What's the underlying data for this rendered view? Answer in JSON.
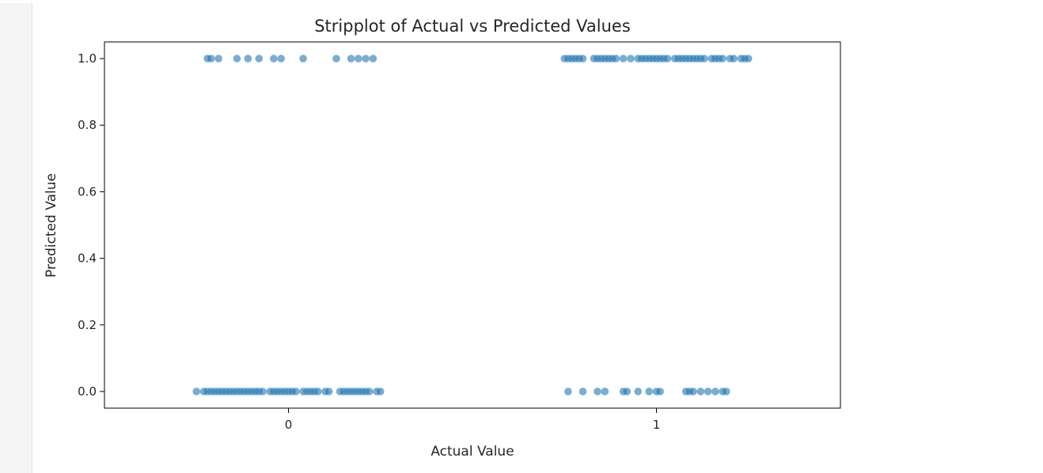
{
  "chart_data": {
    "type": "scatter",
    "subtype": "stripplot",
    "title": "Stripplot of Actual vs Predicted Values",
    "xlabel": "Actual Value",
    "ylabel": "Predicted Value",
    "x_categories": [
      "0",
      "1"
    ],
    "xlim": [
      -0.5,
      1.5
    ],
    "ylim": [
      -0.05,
      1.05
    ],
    "yticks": [
      0.0,
      0.2,
      0.4,
      0.6,
      0.8,
      1.0
    ],
    "ytick_labels": [
      "0.0",
      "0.2",
      "0.4",
      "0.6",
      "0.8",
      "1.0"
    ],
    "grid": false,
    "legend": "none",
    "marker_color": "#1f77b4",
    "marker_alpha": 0.6,
    "groups": [
      {
        "x_category": "0",
        "y": 1.0,
        "jitter": [
          -0.22,
          -0.21,
          -0.19,
          -0.14,
          -0.11,
          -0.08,
          -0.04,
          -0.02,
          0.04,
          0.13,
          0.17,
          0.19,
          0.21,
          0.23
        ]
      },
      {
        "x_category": "0",
        "y": 0.0,
        "jitter": [
          -0.25,
          -0.23,
          -0.22,
          -0.21,
          -0.2,
          -0.19,
          -0.18,
          -0.17,
          -0.16,
          -0.15,
          -0.14,
          -0.13,
          -0.12,
          -0.11,
          -0.1,
          -0.09,
          -0.08,
          -0.07,
          -0.05,
          -0.04,
          -0.03,
          -0.02,
          -0.01,
          0.0,
          0.01,
          0.02,
          0.04,
          0.05,
          0.06,
          0.07,
          0.08,
          0.1,
          0.11,
          0.14,
          0.15,
          0.16,
          0.17,
          0.18,
          0.19,
          0.2,
          0.21,
          0.22,
          0.24,
          0.25
        ]
      },
      {
        "x_category": "1",
        "y": 1.0,
        "jitter": [
          -0.25,
          -0.24,
          -0.23,
          -0.22,
          -0.21,
          -0.2,
          -0.17,
          -0.16,
          -0.15,
          -0.14,
          -0.13,
          -0.12,
          -0.11,
          -0.09,
          -0.07,
          -0.05,
          -0.04,
          -0.03,
          -0.02,
          -0.01,
          0.0,
          0.01,
          0.02,
          0.03,
          0.05,
          0.06,
          0.07,
          0.08,
          0.09,
          0.1,
          0.11,
          0.12,
          0.13,
          0.15,
          0.16,
          0.17,
          0.18,
          0.2,
          0.21,
          0.23,
          0.24,
          0.25
        ]
      },
      {
        "x_category": "1",
        "y": 0.0,
        "jitter": [
          -0.24,
          -0.2,
          -0.16,
          -0.14,
          -0.09,
          -0.08,
          -0.05,
          -0.02,
          0.0,
          0.01,
          0.08,
          0.09,
          0.1,
          0.12,
          0.14,
          0.16,
          0.18,
          0.19
        ]
      }
    ]
  }
}
